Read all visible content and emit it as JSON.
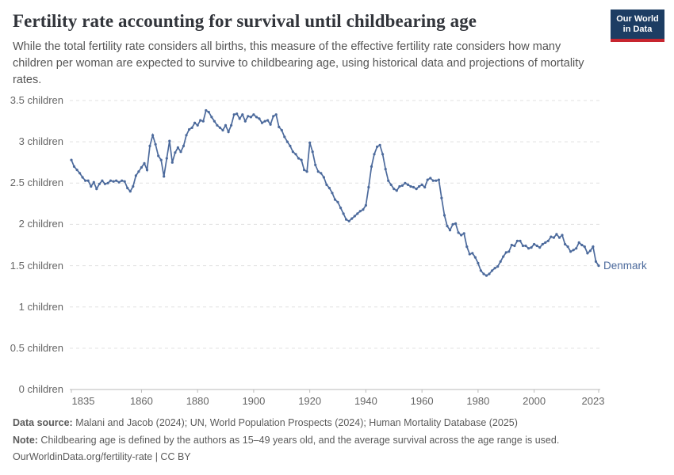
{
  "header": {
    "title": "Fertility rate accounting for survival until childbearing age",
    "subtitle": "While the total fertility rate considers all births, this measure of the effective fertility rate considers how many children per woman are expected to survive to childbearing age, using historical data and projections of mortality rates."
  },
  "logo": {
    "line1": "Our World",
    "line2": "in Data",
    "bg_color": "#1d3d63",
    "stripe_color": "#c7252f"
  },
  "chart_data": {
    "type": "line",
    "title": "Fertility rate accounting for survival until childbearing age",
    "xlabel": "",
    "ylabel": "",
    "xlim": [
      1835,
      2023
    ],
    "ylim": [
      0,
      3.5
    ],
    "grid": "horizontal-dashed",
    "legend_position": "end-of-line",
    "line_color": "#4C6A9C",
    "axis_color": "#b8b8b8",
    "grid_color": "#e0e0e0",
    "x_ticks": [
      1835,
      1860,
      1880,
      1900,
      1920,
      1940,
      1960,
      1980,
      2000,
      2023
    ],
    "y_ticks": [
      0,
      0.5,
      1,
      1.5,
      2,
      2.5,
      3,
      3.5
    ],
    "y_tick_labels": [
      "0 children",
      "0.5 children",
      "1 children",
      "1.5 children",
      "2 children",
      "2.5 children",
      "3 children",
      "3.5 children"
    ],
    "series": [
      {
        "name": "Denmark",
        "start_year": 1835,
        "values": [
          2.78,
          2.7,
          2.66,
          2.62,
          2.57,
          2.53,
          2.53,
          2.46,
          2.51,
          2.43,
          2.49,
          2.53,
          2.49,
          2.5,
          2.53,
          2.52,
          2.53,
          2.51,
          2.53,
          2.52,
          2.44,
          2.4,
          2.46,
          2.59,
          2.64,
          2.69,
          2.74,
          2.66,
          2.95,
          3.08,
          2.97,
          2.83,
          2.78,
          2.58,
          2.8,
          3.01,
          2.75,
          2.87,
          2.93,
          2.88,
          2.95,
          3.08,
          3.15,
          3.17,
          3.23,
          3.2,
          3.26,
          3.25,
          3.38,
          3.36,
          3.3,
          3.25,
          3.2,
          3.17,
          3.14,
          3.2,
          3.12,
          3.2,
          3.33,
          3.34,
          3.28,
          3.33,
          3.25,
          3.31,
          3.3,
          3.33,
          3.3,
          3.28,
          3.23,
          3.25,
          3.26,
          3.21,
          3.31,
          3.33,
          3.18,
          3.14,
          3.06,
          3.0,
          2.95,
          2.88,
          2.85,
          2.8,
          2.78,
          2.66,
          2.64,
          2.99,
          2.88,
          2.72,
          2.64,
          2.62,
          2.57,
          2.48,
          2.44,
          2.38,
          2.3,
          2.27,
          2.2,
          2.13,
          2.06,
          2.04,
          2.07,
          2.1,
          2.13,
          2.16,
          2.18,
          2.23,
          2.45,
          2.7,
          2.85,
          2.94,
          2.96,
          2.85,
          2.67,
          2.53,
          2.48,
          2.43,
          2.41,
          2.46,
          2.47,
          2.5,
          2.48,
          2.46,
          2.45,
          2.43,
          2.46,
          2.48,
          2.45,
          2.54,
          2.56,
          2.53,
          2.53,
          2.54,
          2.32,
          2.11,
          1.98,
          1.93,
          2.0,
          2.01,
          1.9,
          1.87,
          1.89,
          1.73,
          1.64,
          1.65,
          1.6,
          1.53,
          1.44,
          1.4,
          1.38,
          1.4,
          1.44,
          1.47,
          1.49,
          1.55,
          1.61,
          1.66,
          1.67,
          1.75,
          1.74,
          1.8,
          1.8,
          1.74,
          1.74,
          1.71,
          1.72,
          1.76,
          1.74,
          1.72,
          1.76,
          1.78,
          1.8,
          1.85,
          1.84,
          1.88,
          1.84,
          1.87,
          1.76,
          1.73,
          1.67,
          1.69,
          1.71,
          1.78,
          1.75,
          1.73,
          1.65,
          1.68,
          1.73,
          1.55,
          1.5
        ]
      }
    ]
  },
  "footer": {
    "datasource_label": "Data source:",
    "datasource_text": " Malani and Jacob (2024); UN, World Population Prospects (2024); Human Mortality Database (2025)",
    "note_label": "Note:",
    "note_text": " Childbearing age is defined by the authors as 15–49 years old, and the average survival across the age range is used.",
    "url": "OurWorldinData.org/fertility-rate",
    "separator": " | ",
    "license": "CC BY"
  }
}
